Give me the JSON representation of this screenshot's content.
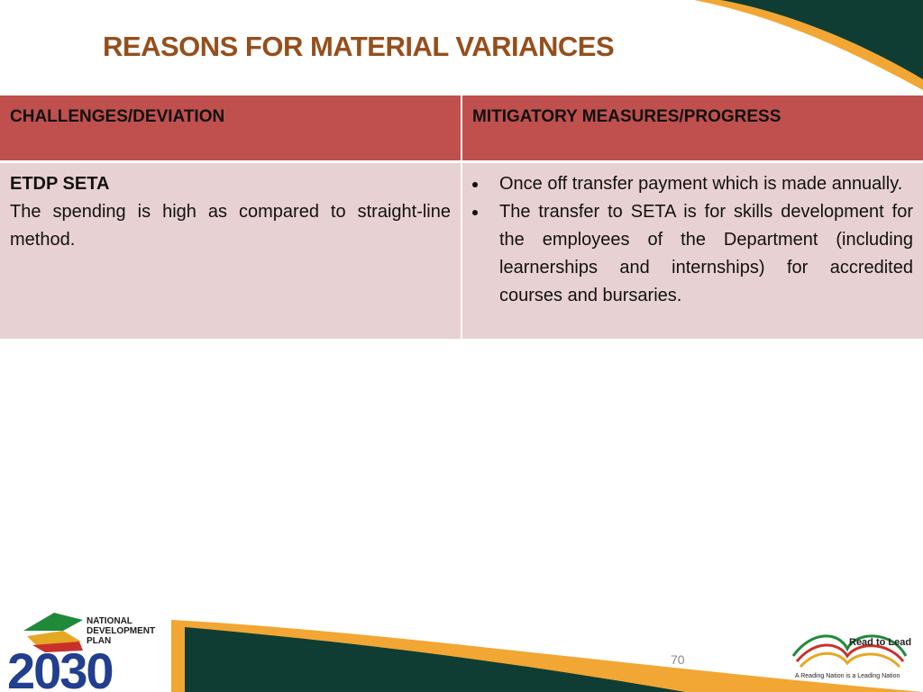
{
  "header": {
    "title": "REASONS FOR MATERIAL VARIANCES"
  },
  "table": {
    "header": [
      "CHALLENGES/DEVIATION",
      "MITIGATORY MEASURES/PROGRESS"
    ],
    "rows": [
      {
        "challenge": {
          "heading": "ETDP SETA",
          "text": "The spending is high as compared to straight-line method."
        },
        "measures": [
          "Once off transfer payment which is made annually.",
          "The transfer to SETA is for skills development for the employees of the Department (including learnerships and internships) for accredited courses and bursaries."
        ]
      }
    ]
  },
  "footer": {
    "page_number": "70",
    "ndp_logo": {
      "line1": "NATIONAL",
      "line2": "DEVELOPMENT",
      "line3": "PLAN",
      "year": "2030"
    },
    "reading_logo": {
      "title": "Read to Lead",
      "tagline": "A Reading Nation is a Leading Nation"
    }
  }
}
